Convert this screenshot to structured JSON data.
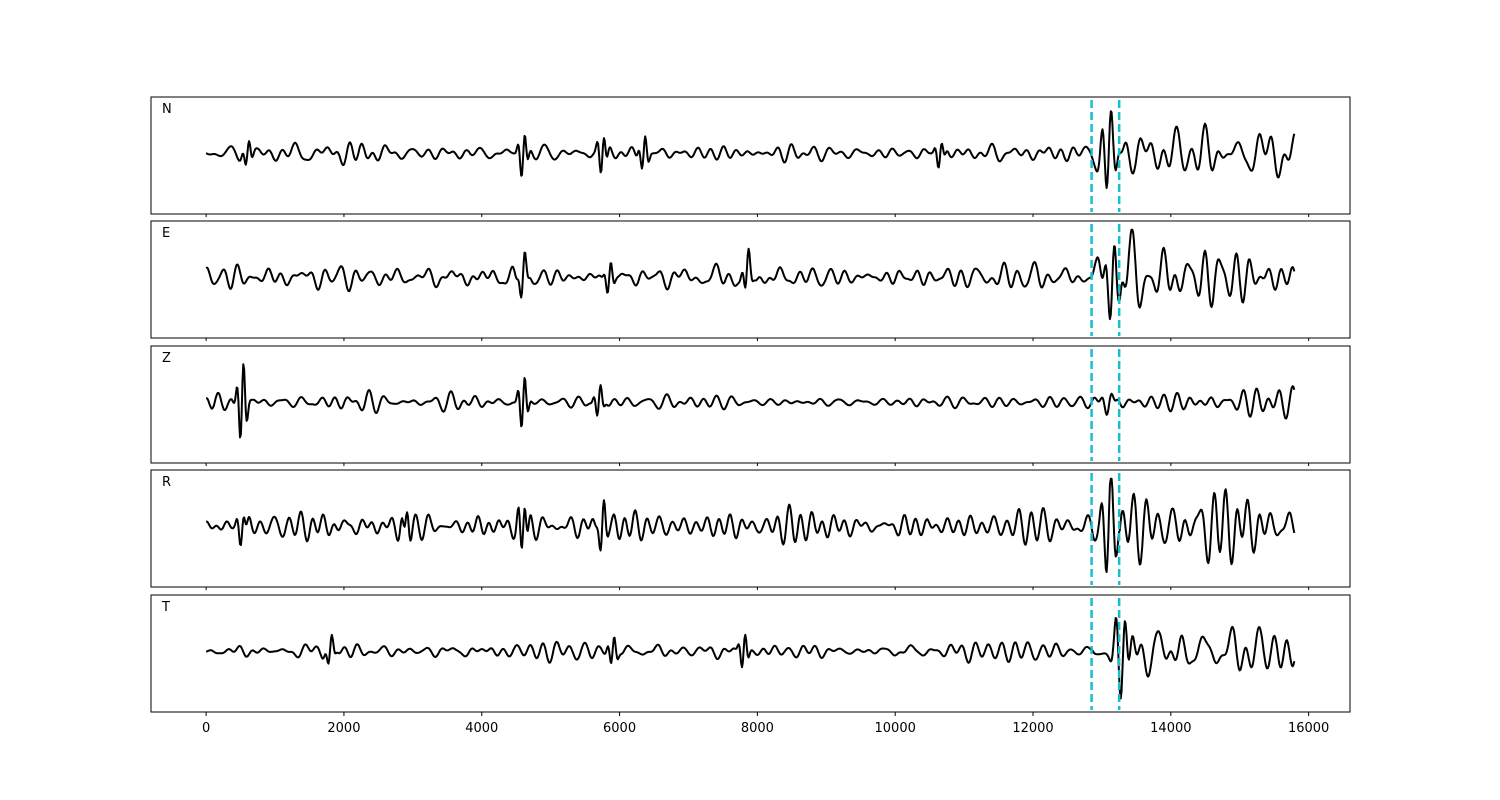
{
  "chart_data": {
    "type": "line",
    "xlim": [
      -800,
      16600
    ],
    "x_ticks": [
      0,
      2000,
      4000,
      6000,
      8000,
      10000,
      12000,
      14000,
      16000
    ],
    "x_tick_labels": [
      "0",
      "2000",
      "4000",
      "6000",
      "8000",
      "10000",
      "12000",
      "14000",
      "16000"
    ],
    "x_range": [
      0,
      15800
    ],
    "markers": [
      12850,
      13250
    ],
    "marker_color": "#17becf",
    "trace_color": "#000000",
    "grid": false,
    "panels": [
      {
        "label": "N",
        "noise_amp": 0.15,
        "events": [
          [
            600,
            0.25
          ],
          [
            4600,
            0.45
          ],
          [
            5750,
            0.4
          ],
          [
            6350,
            0.35
          ],
          [
            10650,
            0.25
          ]
        ],
        "after_amp": 0.5,
        "burst": [
          13100,
          0.85
        ]
      },
      {
        "label": "E",
        "noise_amp": 0.18,
        "events": [
          [
            4600,
            0.35
          ],
          [
            5850,
            0.3
          ],
          [
            7850,
            0.35
          ]
        ],
        "after_amp": 0.7,
        "burst": [
          13150,
          0.85
        ]
      },
      {
        "label": "Z",
        "noise_amp": 0.12,
        "events": [
          [
            520,
            0.85
          ],
          [
            4600,
            0.55
          ],
          [
            5700,
            0.3
          ]
        ],
        "after_amp": 0.25,
        "burst": [
          13100,
          0.2
        ]
      },
      {
        "label": "R",
        "noise_amp": 0.22,
        "events": [
          [
            520,
            0.3
          ],
          [
            2900,
            0.3
          ],
          [
            4600,
            0.55
          ],
          [
            5750,
            0.4
          ]
        ],
        "after_amp": 0.7,
        "burst": [
          13100,
          0.85
        ]
      },
      {
        "label": "T",
        "noise_amp": 0.15,
        "events": [
          [
            1800,
            0.25
          ],
          [
            5900,
            0.3
          ],
          [
            7800,
            0.35
          ]
        ],
        "after_amp": 0.6,
        "burst": [
          13300,
          0.95
        ]
      }
    ]
  }
}
